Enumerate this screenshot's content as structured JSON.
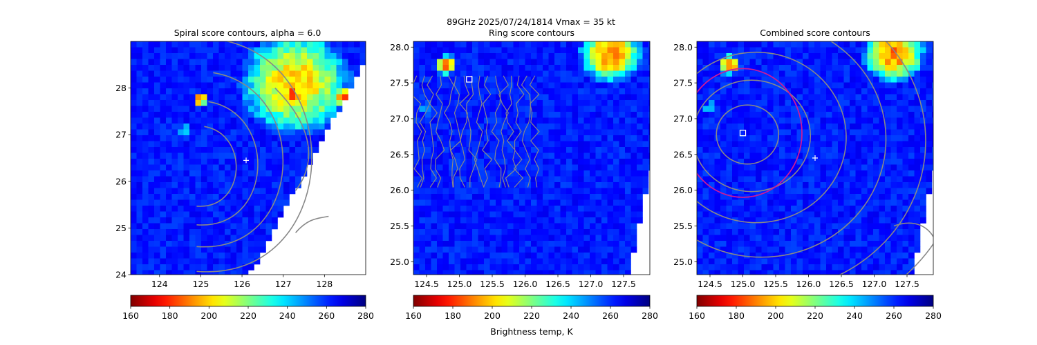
{
  "suptitle": "89GHz  2025/07/24/1814    Vmax = 35 kt",
  "colorbar": {
    "ticks": [
      160,
      180,
      200,
      220,
      240,
      260,
      280
    ],
    "range": [
      160,
      280
    ],
    "label": "Brightness temp, K",
    "colormap": "jet_r"
  },
  "chart_data": [
    {
      "type": "heatmap",
      "title": "Spiral score contours, alpha =  6.0",
      "xlim": [
        123.3,
        129.0
      ],
      "ylim": [
        24.0,
        29.0
      ],
      "xticks": [
        124,
        125,
        126,
        127,
        128
      ],
      "yticks": [
        24,
        25,
        26,
        27,
        28
      ],
      "center_marker": {
        "symbol": "+",
        "x": 126.1,
        "y": 26.45
      },
      "background_tb": 262,
      "swath_edge": [
        [
          126.2,
          24.0
        ],
        [
          129.0,
          28.6
        ]
      ],
      "convection": [
        {
          "x": 127.3,
          "y": 28.1,
          "r": 1.4,
          "tb": 200
        },
        {
          "x": 127.2,
          "y": 27.85,
          "r": 0.35,
          "tb": 182
        },
        {
          "x": 128.5,
          "y": 27.8,
          "r": 0.3,
          "tb": 180
        },
        {
          "x": 125.0,
          "y": 27.75,
          "r": 0.18,
          "tb": 180
        },
        {
          "x": 124.6,
          "y": 27.1,
          "r": 0.15,
          "tb": 230
        }
      ],
      "contours": "spiral score (gray)"
    },
    {
      "type": "heatmap",
      "title": "Ring score contours",
      "xlim": [
        124.3,
        127.9
      ],
      "ylim": [
        24.82,
        28.08
      ],
      "xticks": [
        124.5,
        125.0,
        125.5,
        126.0,
        126.5,
        127.0,
        127.5
      ],
      "yticks": [
        25.0,
        25.5,
        26.0,
        26.5,
        27.0,
        27.5,
        28.0
      ],
      "ring_center_marker": {
        "symbol": "square",
        "x": 125.15,
        "y": 27.55
      },
      "background_tb": 262,
      "swath_edge": [
        [
          127.6,
          24.82
        ],
        [
          127.9,
          26.3
        ]
      ],
      "convection": [
        {
          "x": 127.3,
          "y": 27.9,
          "r": 0.5,
          "tb": 190
        },
        {
          "x": 124.8,
          "y": 27.75,
          "r": 0.18,
          "tb": 182
        },
        {
          "x": 124.5,
          "y": 27.15,
          "r": 0.12,
          "tb": 245
        }
      ],
      "contours": "ring score (gray)"
    },
    {
      "type": "heatmap",
      "title": "Combined score contours",
      "xlim": [
        124.3,
        127.9
      ],
      "ylim": [
        24.82,
        28.08
      ],
      "xticks": [
        124.5,
        125.0,
        125.5,
        126.0,
        126.5,
        127.0,
        127.5
      ],
      "yticks": [
        25.0,
        25.5,
        26.0,
        26.5,
        27.0,
        27.5,
        28.0
      ],
      "center_marker": {
        "symbol": "+",
        "x": 126.1,
        "y": 26.45
      },
      "best_center_marker": {
        "symbol": "square",
        "x": 125.0,
        "y": 26.8
      },
      "radius_circle": {
        "x": 125.0,
        "y": 26.8,
        "r": 0.9,
        "color": "#cc1a99"
      },
      "background_tb": 262,
      "swath_edge": [
        [
          127.6,
          24.82
        ],
        [
          127.9,
          26.3
        ]
      ],
      "convection": [
        {
          "x": 127.3,
          "y": 27.9,
          "r": 0.5,
          "tb": 190
        },
        {
          "x": 124.8,
          "y": 27.75,
          "r": 0.18,
          "tb": 182
        },
        {
          "x": 124.5,
          "y": 27.15,
          "r": 0.12,
          "tb": 245
        }
      ],
      "contours": "combined score (gray)"
    }
  ]
}
